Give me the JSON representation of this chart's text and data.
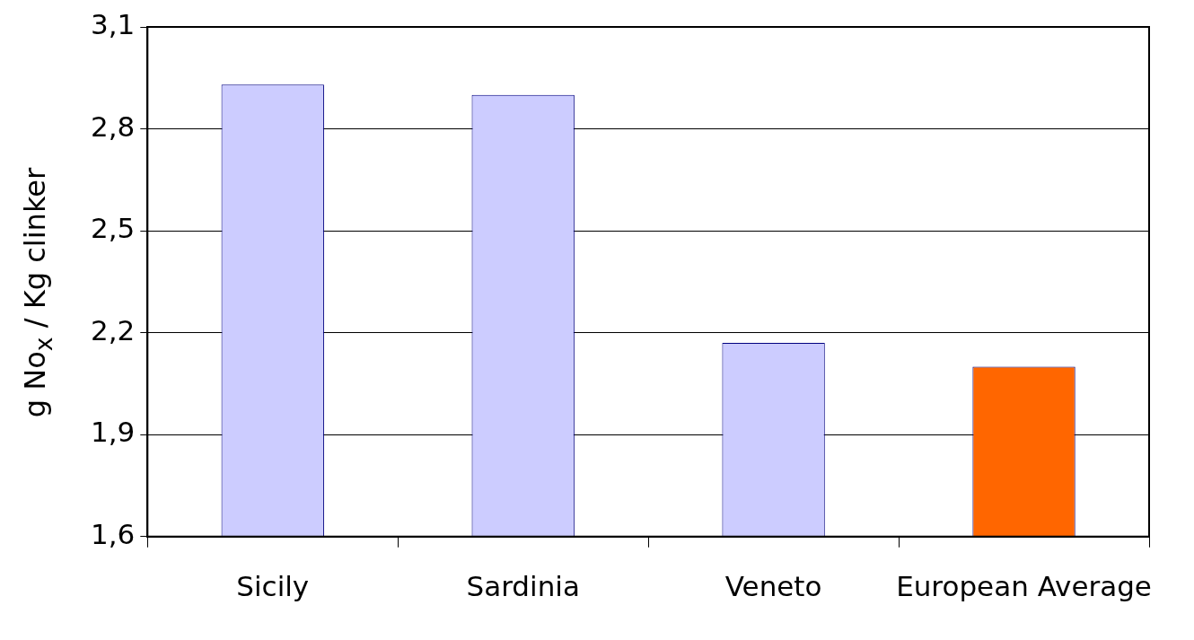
{
  "chart_data": {
    "type": "bar",
    "ylabel": "g No$_{x}$  / Kg clinker",
    "categories": [
      "Sicily",
      "Sardinia",
      "Veneto",
      "European Average"
    ],
    "values": [
      2.93,
      2.9,
      2.17,
      2.1
    ],
    "colors": [
      "#ccccff",
      "#ccccff",
      "#ccccff",
      "#ff6600"
    ],
    "ylim": [
      1.6,
      3.1
    ],
    "yticks": [
      {
        "value": 1.6,
        "label": "1,6"
      },
      {
        "value": 1.9,
        "label": "1,9"
      },
      {
        "value": 2.2,
        "label": "2,2"
      },
      {
        "value": 2.5,
        "label": "2,5"
      },
      {
        "value": 2.8,
        "label": "2,8"
      },
      {
        "value": 3.1,
        "label": "3,1"
      }
    ],
    "grid": "y",
    "legend": false
  }
}
